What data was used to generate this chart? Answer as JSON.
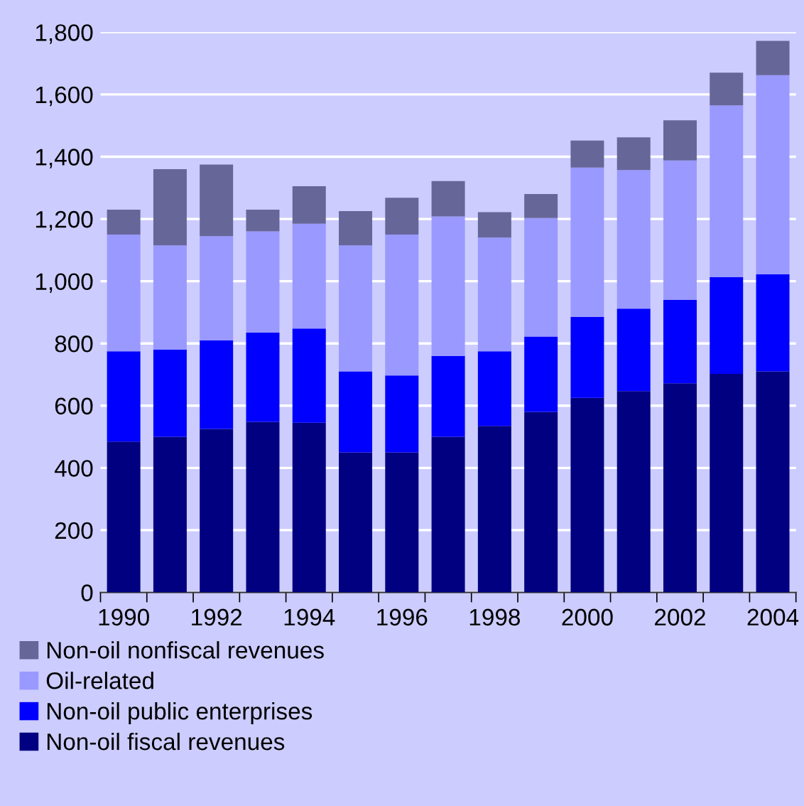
{
  "chart_data": {
    "type": "bar",
    "stacked": true,
    "categories": [
      "1990",
      null,
      "1992",
      null,
      "1994",
      null,
      "1996",
      null,
      "1998",
      null,
      "2000",
      null,
      "2002",
      null,
      "2004"
    ],
    "series": [
      {
        "name": "Non-oil fiscal revenues",
        "color": "#000080",
        "values": [
          485,
          500,
          525,
          548,
          545,
          450,
          450,
          500,
          535,
          580,
          625,
          647,
          672,
          702,
          710
        ]
      },
      {
        "name": "Non-oil public enterprises",
        "color": "#0000ff",
        "values": [
          290,
          280,
          285,
          287,
          303,
          260,
          247,
          260,
          240,
          242,
          260,
          265,
          268,
          311,
          312
        ]
      },
      {
        "name": "Oil-related",
        "color": "#9999ff",
        "values": [
          375,
          335,
          335,
          325,
          337,
          405,
          453,
          448,
          365,
          381,
          480,
          445,
          448,
          552,
          640
        ]
      },
      {
        "name": "Non-oil nonfiscal revenues",
        "color": "#666699",
        "values": [
          80,
          245,
          230,
          70,
          120,
          110,
          118,
          114,
          82,
          77,
          87,
          105,
          129,
          105,
          110
        ]
      }
    ],
    "ylim": [
      0,
      1800
    ],
    "yticks": [
      0,
      {
        "value": 200,
        "label": "200"
      },
      {
        "value": 400,
        "label": "400"
      },
      {
        "value": 600,
        "label": "600"
      },
      {
        "value": 800,
        "label": "800"
      },
      {
        "value": 1000,
        "label": "1,000"
      },
      {
        "value": 1200,
        "label": "1,200"
      },
      {
        "value": 1400,
        "label": "1,400"
      },
      {
        "value": 1600,
        "label": "1,600"
      },
      {
        "value": 1800,
        "label": "1,800"
      }
    ],
    "grid": "y",
    "legend": "bottom"
  }
}
